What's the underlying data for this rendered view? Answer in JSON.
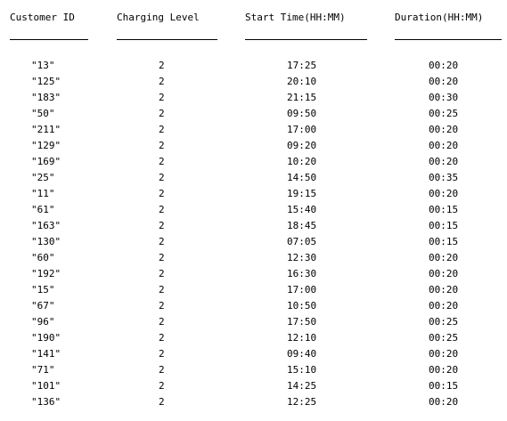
{
  "headers": {
    "customer_id": "Customer ID",
    "charging_level": "Charging Level",
    "start_time": "Start Time(HH:MM)",
    "duration": "Duration(HH:MM)"
  },
  "rows": [
    {
      "customer_id": "\"13\"",
      "charging_level": "2",
      "start_time": "17:25",
      "duration": "00:20"
    },
    {
      "customer_id": "\"125\"",
      "charging_level": "2",
      "start_time": "20:10",
      "duration": "00:20"
    },
    {
      "customer_id": "\"183\"",
      "charging_level": "2",
      "start_time": "21:15",
      "duration": "00:30"
    },
    {
      "customer_id": "\"50\"",
      "charging_level": "2",
      "start_time": "09:50",
      "duration": "00:25"
    },
    {
      "customer_id": "\"211\"",
      "charging_level": "2",
      "start_time": "17:00",
      "duration": "00:20"
    },
    {
      "customer_id": "\"129\"",
      "charging_level": "2",
      "start_time": "09:20",
      "duration": "00:20"
    },
    {
      "customer_id": "\"169\"",
      "charging_level": "2",
      "start_time": "10:20",
      "duration": "00:20"
    },
    {
      "customer_id": "\"25\"",
      "charging_level": "2",
      "start_time": "14:50",
      "duration": "00:35"
    },
    {
      "customer_id": "\"11\"",
      "charging_level": "2",
      "start_time": "19:15",
      "duration": "00:20"
    },
    {
      "customer_id": "\"61\"",
      "charging_level": "2",
      "start_time": "15:40",
      "duration": "00:15"
    },
    {
      "customer_id": "\"163\"",
      "charging_level": "2",
      "start_time": "18:45",
      "duration": "00:15"
    },
    {
      "customer_id": "\"130\"",
      "charging_level": "2",
      "start_time": "07:05",
      "duration": "00:15"
    },
    {
      "customer_id": "\"60\"",
      "charging_level": "2",
      "start_time": "12:30",
      "duration": "00:20"
    },
    {
      "customer_id": "\"192\"",
      "charging_level": "2",
      "start_time": "16:30",
      "duration": "00:20"
    },
    {
      "customer_id": "\"15\"",
      "charging_level": "2",
      "start_time": "17:00",
      "duration": "00:20"
    },
    {
      "customer_id": "\"67\"",
      "charging_level": "2",
      "start_time": "10:50",
      "duration": "00:20"
    },
    {
      "customer_id": "\"96\"",
      "charging_level": "2",
      "start_time": "17:50",
      "duration": "00:25"
    },
    {
      "customer_id": "\"190\"",
      "charging_level": "2",
      "start_time": "12:10",
      "duration": "00:25"
    },
    {
      "customer_id": "\"141\"",
      "charging_level": "2",
      "start_time": "09:40",
      "duration": "00:20"
    },
    {
      "customer_id": "\"71\"",
      "charging_level": "2",
      "start_time": "15:10",
      "duration": "00:20"
    },
    {
      "customer_id": "\"101\"",
      "charging_level": "2",
      "start_time": "14:25",
      "duration": "00:15"
    },
    {
      "customer_id": "\"136\"",
      "charging_level": "2",
      "start_time": "12:25",
      "duration": "00:20"
    }
  ]
}
